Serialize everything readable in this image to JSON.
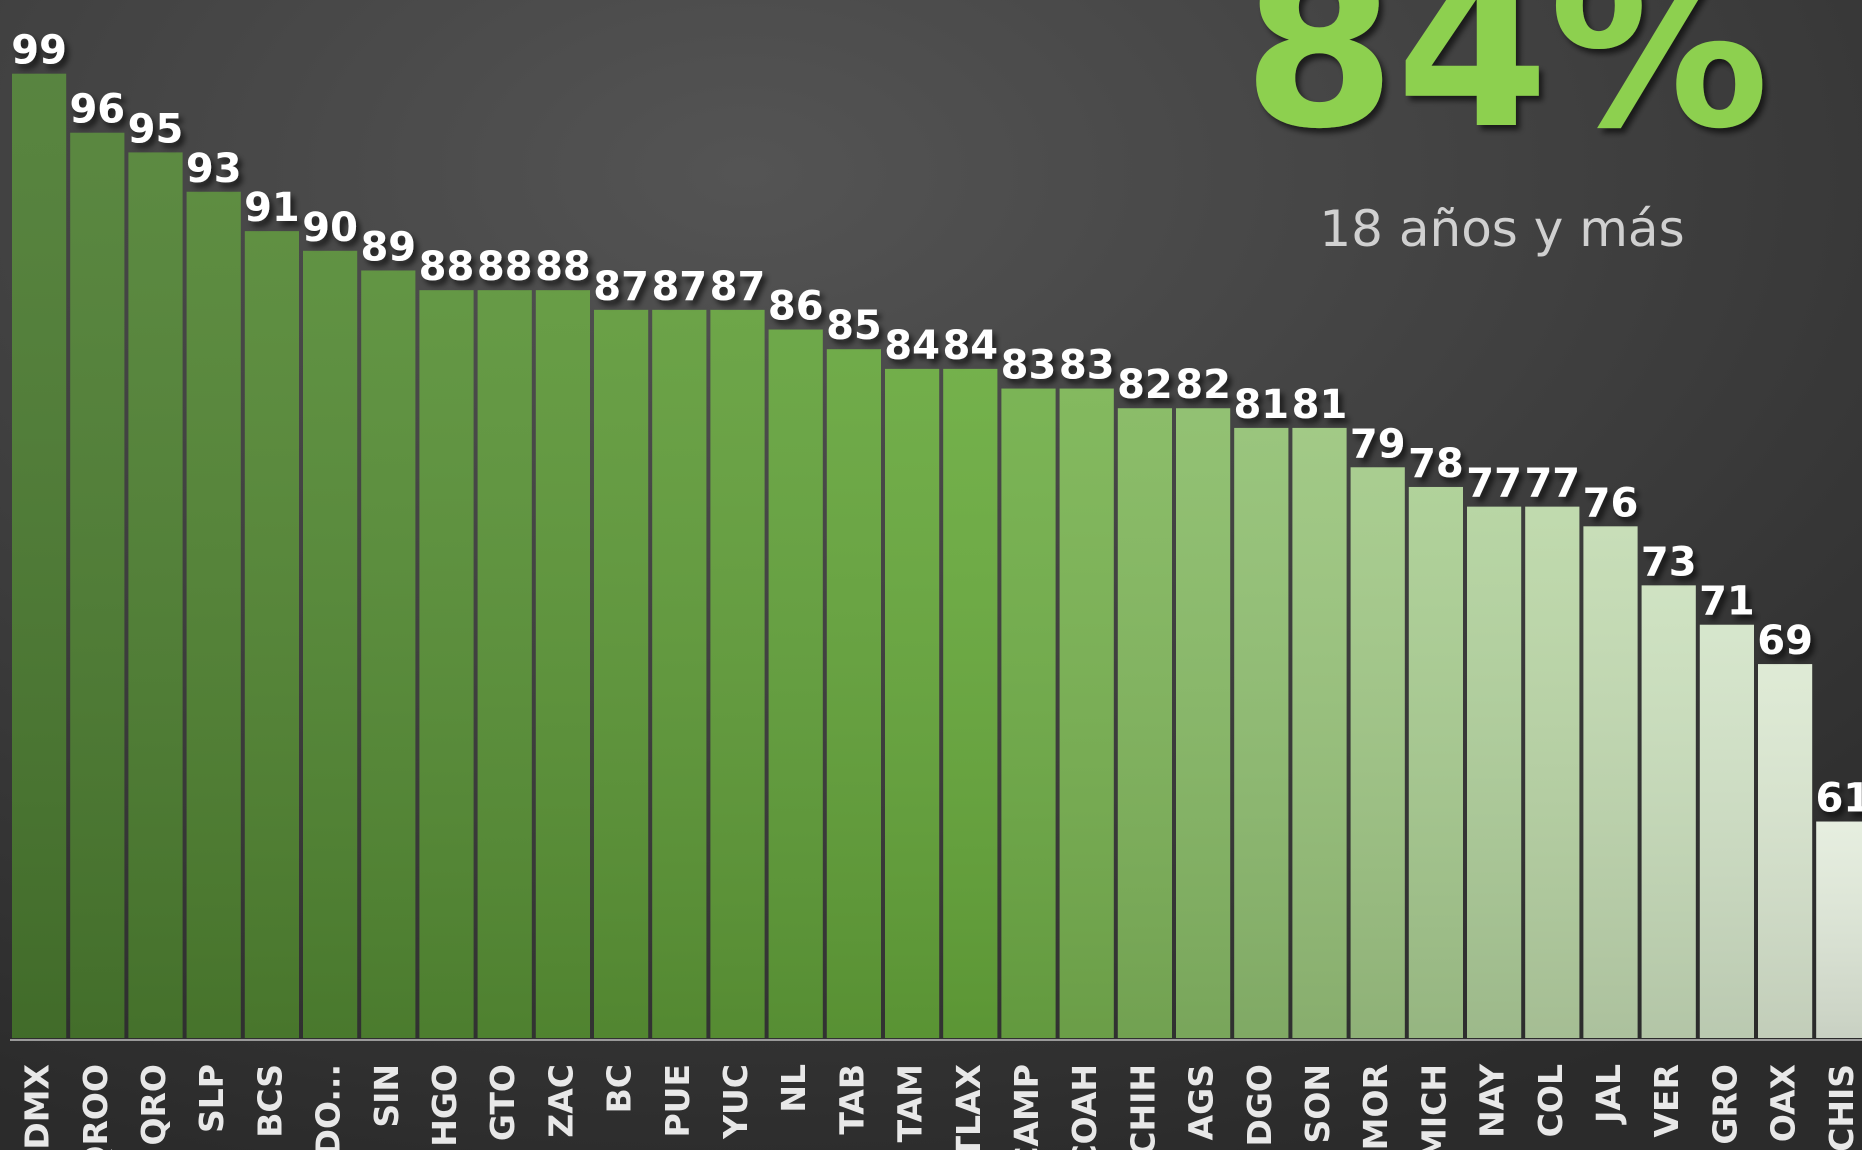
{
  "chart_data": {
    "type": "bar",
    "title": "84%",
    "subtitle": "18 años y más",
    "categories": [
      "CDMX",
      "QROO",
      "QRO",
      "SLP",
      "BCS",
      "EDO...",
      "SIN",
      "HGO",
      "GTO",
      "ZAC",
      "BC",
      "PUE",
      "YUC",
      "NL",
      "TAB",
      "TAM",
      "TLAX",
      "CAMP",
      "COAH",
      "CHIH",
      "AGS",
      "DGO",
      "SON",
      "MOR",
      "MICH",
      "NAY",
      "COL",
      "JAL",
      "VER",
      "GRO",
      "OAX",
      "CHIS"
    ],
    "values": [
      99,
      96,
      95,
      93,
      91,
      90,
      89,
      88,
      88,
      88,
      87,
      87,
      87,
      86,
      85,
      84,
      84,
      83,
      83,
      82,
      82,
      81,
      81,
      79,
      78,
      77,
      77,
      76,
      73,
      71,
      69,
      61
    ],
    "colors": [
      "#4a7a2f",
      "#68aa3c",
      "#e4eddd"
    ],
    "ylim": [
      50,
      100
    ]
  }
}
